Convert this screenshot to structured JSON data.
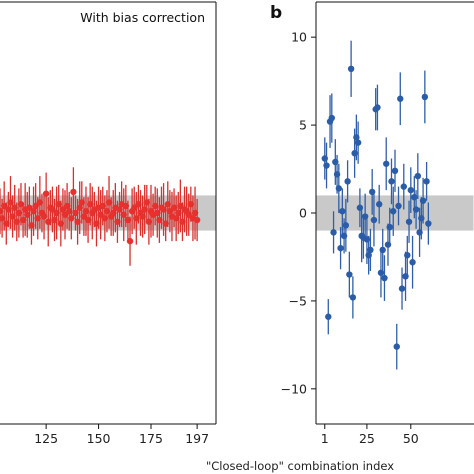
{
  "chart_data": [
    {
      "type": "scatter",
      "panel": "a",
      "annotation": "With bias correction",
      "x_ticks": [
        125,
        150,
        175,
        197
      ],
      "xlim": [
        103,
        206
      ],
      "ylim": [
        -12,
        12
      ],
      "band": [
        -1,
        1
      ],
      "color": "#e8312e",
      "errorbar_color": "#d9302c",
      "band_color": "#c9c9c9",
      "series": [
        {
          "x": [
            103,
            104,
            105,
            106,
            107,
            108,
            109,
            110,
            111,
            112,
            113,
            114,
            115,
            116,
            117,
            118,
            119,
            120,
            121,
            122,
            123,
            124,
            125,
            126,
            127,
            128,
            129,
            130,
            131,
            132,
            133,
            134,
            135,
            136,
            137,
            138,
            139,
            140,
            141,
            142,
            143,
            144,
            145,
            146,
            147,
            148,
            149,
            150,
            151,
            152,
            153,
            154,
            155,
            156,
            157,
            158,
            159,
            160,
            161,
            162,
            163,
            164,
            165,
            166,
            167,
            168,
            169,
            170,
            171,
            172,
            173,
            174,
            175,
            176,
            177,
            178,
            179,
            180,
            181,
            182,
            183,
            184,
            185,
            186,
            187,
            188,
            189,
            190,
            191,
            192,
            193,
            194,
            195,
            196,
            197
          ],
          "y": [
            0.1,
            -0.3,
            0.4,
            -0.6,
            0.2,
            0.6,
            -0.2,
            0.3,
            -0.5,
            0.0,
            0.5,
            -0.4,
            0.2,
            -0.1,
            0.3,
            -0.7,
            0.1,
            0.4,
            -0.3,
            0.6,
            0.0,
            -0.2,
            1.1,
            -0.5,
            0.3,
            0.2,
            -0.4,
            0.0,
            0.5,
            -0.6,
            0.2,
            -0.1,
            0.4,
            0.1,
            -0.3,
            1.2,
            0.0,
            -0.5,
            0.3,
            0.6,
            -0.2,
            0.1,
            -0.4,
            0.5,
            0.0,
            0.2,
            -0.6,
            0.3,
            -0.1,
            0.4,
            -0.3,
            0.1,
            0.6,
            -0.2,
            0.0,
            0.3,
            -0.5,
            0.2,
            0.5,
            -0.1,
            0.4,
            -0.4,
            -1.6,
            0.1,
            0.3,
            -0.3,
            0.5,
            0.0,
            -0.2,
            0.2,
            0.6,
            -0.5,
            0.1,
            -0.1,
            0.4,
            0.0,
            -0.4,
            0.3,
            0.2,
            -0.6,
            0.5,
            0.1,
            -0.2,
            0.3,
            -0.3,
            0.0,
            0.4,
            -0.5,
            0.2,
            0.1,
            -0.1,
            0.5,
            -0.3,
            0.0,
            -0.4
          ],
          "err": [
            1.3,
            1.1,
            1.4,
            1.2,
            1.0,
            1.5,
            1.2,
            1.3,
            1.1,
            1.4,
            1.2,
            1.0,
            1.5,
            1.3,
            1.2,
            1.1,
            1.4,
            1.3,
            1.2,
            1.5,
            1.1,
            1.3,
            1.2,
            1.4,
            1.0,
            1.3,
            1.2,
            1.5,
            1.1,
            1.3,
            1.2,
            1.4,
            1.3,
            1.1,
            1.2,
            1.4,
            1.0,
            1.3,
            1.5,
            1.2,
            1.1,
            1.4,
            1.3,
            1.2,
            1.5,
            1.0,
            1.3,
            1.2,
            1.4,
            1.1,
            1.3,
            1.2,
            1.5,
            1.1,
            1.3,
            1.4,
            1.2,
            1.0,
            1.3,
            1.5,
            1.2,
            1.1,
            1.4,
            1.3,
            1.2,
            1.5,
            1.1,
            1.3,
            1.2,
            1.4,
            1.0,
            1.3,
            1.5,
            1.2,
            1.1,
            1.4,
            1.3,
            1.2,
            1.5,
            1.0,
            1.3,
            1.2,
            1.4,
            1.1,
            1.3,
            1.2,
            1.5,
            1.1,
            1.3,
            1.4,
            1.2,
            1.0,
            1.3,
            1.5,
            1.2
          ]
        }
      ]
    },
    {
      "type": "scatter",
      "panel": "b",
      "x_ticks": [
        1,
        25,
        50
      ],
      "y_ticks": [
        10,
        5,
        0,
        -5,
        -10
      ],
      "xlim": [
        -4,
        86
      ],
      "ylim": [
        -12,
        12
      ],
      "band": [
        -1,
        1
      ],
      "color": "#2a5ca8",
      "errorbar_color": "#2f5fa8",
      "band_color": "#c9c9c9",
      "series": [
        {
          "x": [
            1,
            2,
            3,
            4,
            5,
            6,
            7,
            8,
            9,
            10,
            11,
            12,
            13,
            14,
            15,
            16,
            17,
            18,
            19,
            20,
            21,
            22,
            23,
            24,
            25,
            26,
            27,
            28,
            29,
            30,
            31,
            32,
            33,
            34,
            35,
            36,
            37,
            38,
            39,
            40,
            41,
            42,
            43,
            44,
            45,
            46,
            47,
            48,
            49,
            50,
            51,
            52,
            53,
            54,
            55,
            56,
            57,
            58,
            59,
            60
          ],
          "y": [
            3.1,
            2.7,
            -5.9,
            5.2,
            5.4,
            -1.1,
            2.9,
            2.2,
            1.4,
            -2.0,
            0.1,
            -1.3,
            -0.7,
            1.8,
            -3.5,
            8.2,
            -4.8,
            3.4,
            4.3,
            4.0,
            0.3,
            -1.3,
            -1.4,
            -0.2,
            -1.5,
            -2.4,
            -2.1,
            1.2,
            -0.4,
            5.9,
            6.0,
            0.5,
            -3.4,
            -2.1,
            -3.7,
            2.8,
            -1.8,
            -0.8,
            1.8,
            0.1,
            2.4,
            -7.6,
            0.4,
            6.5,
            -4.3,
            1.5,
            -3.6,
            -2.4,
            -0.5,
            1.3,
            -2.8,
            0.9,
            0.2,
            2.1,
            -1.1,
            -0.3,
            0.7,
            6.6,
            1.8,
            -0.6
          ],
          "err": [
            1.2,
            1.3,
            1.0,
            1.5,
            1.4,
            1.2,
            1.3,
            1.1,
            1.4,
            1.2,
            1.3,
            1.0,
            1.5,
            1.2,
            1.3,
            1.6,
            1.2,
            1.4,
            1.3,
            1.2,
            1.1,
            1.5,
            1.2,
            1.3,
            1.4,
            1.1,
            1.2,
            1.3,
            1.5,
            1.2,
            1.3,
            1.1,
            1.4,
            1.2,
            1.3,
            1.5,
            1.2,
            1.1,
            1.3,
            1.4,
            1.2,
            1.3,
            1.1,
            1.5,
            1.2,
            1.3,
            1.4,
            1.1,
            1.2,
            1.3,
            1.5,
            1.2,
            1.1,
            1.3,
            1.4,
            1.2,
            1.3,
            1.5,
            1.1,
            1.2
          ]
        }
      ]
    }
  ],
  "panel_b_letter": "b",
  "shared_xlabel": "\"Closed-loop\" combination index"
}
